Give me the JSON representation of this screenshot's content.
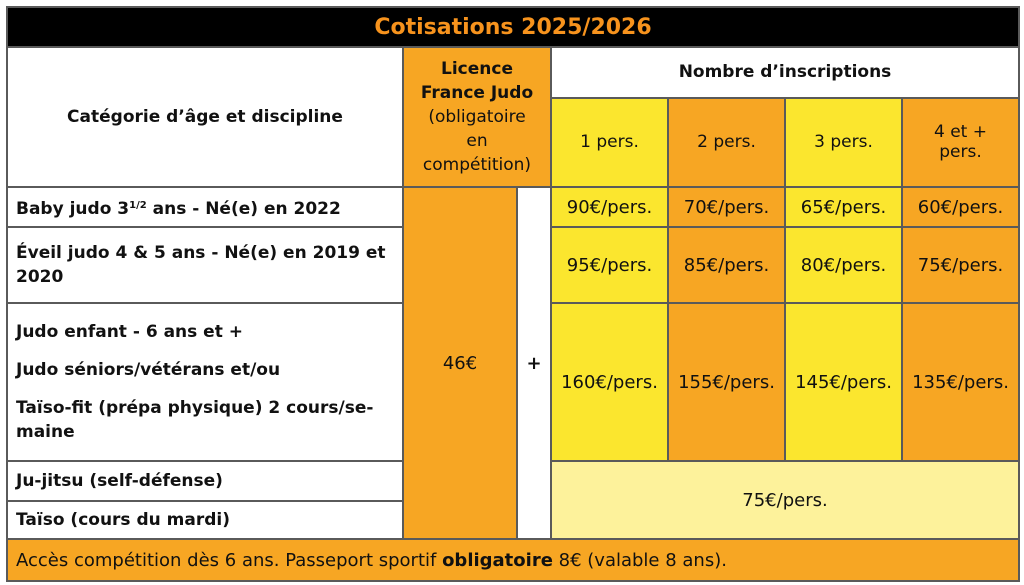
{
  "title": "Cotisations 2025/2026",
  "licence": {
    "line1": "Licence",
    "line2": "France Judo",
    "line3": "(obligatoire",
    "line4": "en",
    "line5": "compétition)",
    "price": "46€"
  },
  "plus": "+",
  "inscriptions_header": "Nombre d’inscriptions",
  "category_header": "Catégorie d’âge et discipline",
  "columns": [
    "1 pers.",
    "2 pers.",
    "3 pers.",
    "4 et +",
    "pers."
  ],
  "rows": [
    {
      "label_a": "Baby judo 3",
      "label_sup": "1/2",
      "label_b": " ans - Né(e) en 2022",
      "prices": [
        "90€/pers.",
        "70€/pers.",
        "65€/pers.",
        "60€/pers."
      ]
    },
    {
      "label": "Éveil judo 4 & 5 ans - Né(e) en 2019 et 2020",
      "prices": [
        "95€/pers.",
        "85€/pers.",
        "80€/pers.",
        "75€/pers."
      ]
    },
    {
      "label_1": "Judo enfant - 6 ans et +",
      "label_2": "Judo séniors/vétérans et/ou",
      "label_3": "Taïso-fit (prépa physique) 2 cours/se-maine",
      "prices": [
        "160€/pers.",
        "155€/pers.",
        "145€/pers.",
        "135€/pers."
      ]
    },
    {
      "label": "Ju-jitsu (self-défense)"
    },
    {
      "label": "Taïso (cours du mardi)"
    }
  ],
  "shared_price": "75€/pers.",
  "footer": {
    "text_before": "Accès compétition dès 6 ans. Passeport sportif ",
    "bold": "obligatoire",
    "text_after": " 8€ (valable 8 ans)."
  },
  "colors": {
    "title_bg": "#000000",
    "title_text": "#f7931d",
    "orange": "#f7a623",
    "yellow": "#fbe62e",
    "light_yellow": "#fdf29b"
  }
}
